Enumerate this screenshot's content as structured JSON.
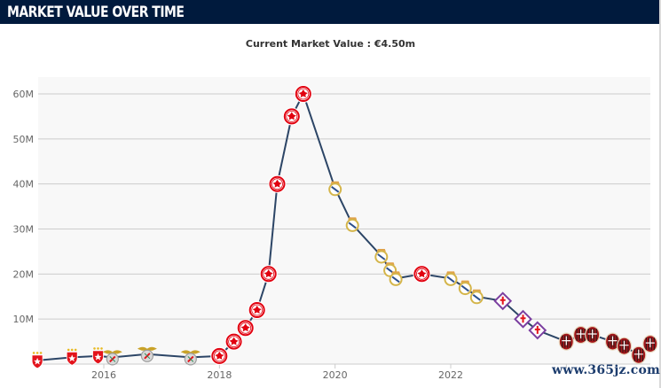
{
  "header": {
    "title": "MARKET VALUE OVER TIME"
  },
  "subtitle": "Current Market Value : €4.50m",
  "watermark": "www.365jz.com",
  "colors": {
    "header_bg": "#001a3d",
    "line": "#2c4566",
    "plot_bg": "#f8f8f8",
    "grid": "#cccccc"
  },
  "clubs": {
    "red-star": {
      "name": "Red Star Belgrade",
      "icon": "red-star-crest-icon",
      "primary": "#e3131b",
      "secondary": "#e8b923"
    },
    "benfica": {
      "name": "Benfica",
      "icon": "benfica-eagle-crest-icon",
      "primary": "#c9a227",
      "secondary": "#9e9e9e"
    },
    "frankfurt": {
      "name": "Eintracht Frankfurt",
      "icon": "frankfurt-eagle-crest-icon",
      "primary": "#e1000f",
      "secondary": "#ffffff"
    },
    "real-madrid": {
      "name": "Real Madrid",
      "icon": "real-madrid-crest-icon",
      "primary": "#d4b54a",
      "secondary": "#2c4f8c"
    },
    "fiorentina": {
      "name": "Fiorentina",
      "icon": "fiorentina-lily-crest-icon",
      "primary": "#7b3fa0",
      "secondary": "#e3131b"
    },
    "milan": {
      "name": "AC Milan",
      "icon": "milan-crest-icon",
      "primary": "#a4161a",
      "secondary": "#1a1a1a"
    }
  },
  "chart_data": {
    "type": "line",
    "title": "MARKET VALUE OVER TIME",
    "subtitle": "Current Market Value : €4.50m",
    "xlabel": "",
    "ylabel": "",
    "xlim": [
      2014.6,
      2025.4
    ],
    "ylim": [
      0,
      62
    ],
    "grid": true,
    "legend": "none",
    "y_ticks": [
      {
        "value": 10,
        "label": "10M"
      },
      {
        "value": 20,
        "label": "20M"
      },
      {
        "value": 30,
        "label": "30M"
      },
      {
        "value": 40,
        "label": "40M"
      },
      {
        "value": 50,
        "label": "50M"
      },
      {
        "value": 60,
        "label": "60M"
      }
    ],
    "x_ticks": [
      {
        "value": 2016,
        "label": "2016"
      },
      {
        "value": 2018,
        "label": "2018"
      },
      {
        "value": 2020,
        "label": "2020"
      },
      {
        "value": 2022,
        "label": "2022"
      },
      {
        "value": 2024,
        "label": ""
      }
    ],
    "series": [
      {
        "name": "Market value (€M)",
        "points": [
          {
            "x": 2014.85,
            "y": 0.8,
            "club": "red-star"
          },
          {
            "x": 2015.45,
            "y": 1.5,
            "club": "red-star"
          },
          {
            "x": 2015.9,
            "y": 1.8,
            "club": "red-star"
          },
          {
            "x": 2016.15,
            "y": 1.5,
            "club": "benfica"
          },
          {
            "x": 2016.75,
            "y": 2.2,
            "club": "benfica"
          },
          {
            "x": 2017.5,
            "y": 1.5,
            "club": "benfica"
          },
          {
            "x": 2018.0,
            "y": 1.8,
            "club": "frankfurt"
          },
          {
            "x": 2018.25,
            "y": 5,
            "club": "frankfurt"
          },
          {
            "x": 2018.45,
            "y": 8,
            "club": "frankfurt"
          },
          {
            "x": 2018.65,
            "y": 12,
            "club": "frankfurt"
          },
          {
            "x": 2018.85,
            "y": 20,
            "club": "frankfurt"
          },
          {
            "x": 2019.0,
            "y": 40,
            "club": "frankfurt"
          },
          {
            "x": 2019.25,
            "y": 55,
            "club": "frankfurt"
          },
          {
            "x": 2019.45,
            "y": 60,
            "club": "frankfurt"
          },
          {
            "x": 2020.0,
            "y": 39,
            "club": "real-madrid"
          },
          {
            "x": 2020.3,
            "y": 31,
            "club": "real-madrid"
          },
          {
            "x": 2020.8,
            "y": 24,
            "club": "real-madrid"
          },
          {
            "x": 2020.95,
            "y": 21,
            "club": "real-madrid"
          },
          {
            "x": 2021.05,
            "y": 19,
            "club": "real-madrid"
          },
          {
            "x": 2021.5,
            "y": 20,
            "club": "frankfurt"
          },
          {
            "x": 2022.0,
            "y": 19,
            "club": "real-madrid"
          },
          {
            "x": 2022.25,
            "y": 17,
            "club": "real-madrid"
          },
          {
            "x": 2022.45,
            "y": 15,
            "club": "real-madrid"
          },
          {
            "x": 2022.9,
            "y": 14,
            "club": "fiorentina"
          },
          {
            "x": 2023.25,
            "y": 10,
            "club": "fiorentina"
          },
          {
            "x": 2023.5,
            "y": 7.5,
            "club": "fiorentina"
          },
          {
            "x": 2024.0,
            "y": 5,
            "club": "milan"
          },
          {
            "x": 2024.25,
            "y": 6.5,
            "club": "milan"
          },
          {
            "x": 2024.45,
            "y": 6.5,
            "club": "milan"
          },
          {
            "x": 2024.8,
            "y": 5,
            "club": "milan"
          },
          {
            "x": 2025.0,
            "y": 4,
            "club": "milan"
          },
          {
            "x": 2025.25,
            "y": 2,
            "club": "milan"
          },
          {
            "x": 2025.45,
            "y": 4.5,
            "club": "milan"
          }
        ]
      }
    ]
  }
}
